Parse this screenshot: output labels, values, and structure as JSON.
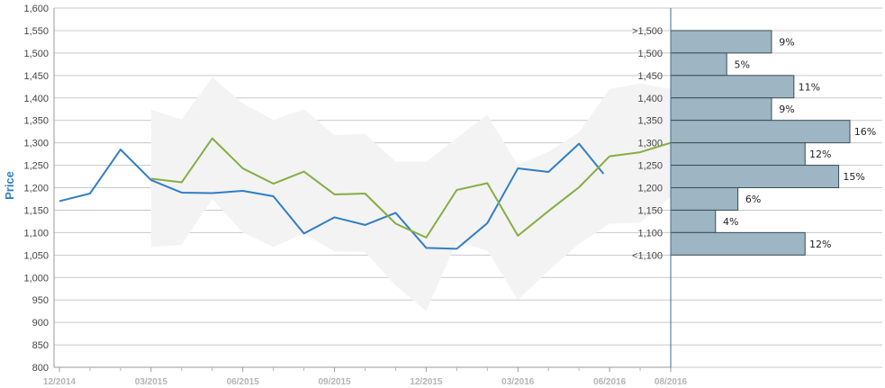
{
  "chart_data": {
    "type": "line",
    "title": "",
    "ylabel": "Price",
    "xlabel": "",
    "ylim": [
      800,
      1600
    ],
    "y_ticks": [
      800,
      850,
      900,
      950,
      1000,
      1050,
      1100,
      1150,
      1200,
      1250,
      1300,
      1350,
      1400,
      1450,
      1500,
      1550,
      1600
    ],
    "y_tick_labels": [
      "800",
      "850",
      "900",
      "950",
      "1,000",
      "1,050",
      "1,100",
      "1,150",
      "1,200",
      "1,250",
      "1,300",
      "1,350",
      "1,400",
      "1,450",
      "1,500",
      "1,550",
      "1,600"
    ],
    "x_ticks": [
      {
        "pos": 0,
        "label": "12/2014"
      },
      {
        "pos": 3,
        "label": "03/2015"
      },
      {
        "pos": 6,
        "label": "06/2015"
      },
      {
        "pos": 9,
        "label": "09/2015"
      },
      {
        "pos": 12,
        "label": "12/2015"
      },
      {
        "pos": 15,
        "label": "03/2016"
      },
      {
        "pos": 18,
        "label": "06/2016"
      },
      {
        "pos": 20,
        "label": "08/2016"
      }
    ],
    "xlim": [
      0,
      20
    ],
    "grid": true,
    "series": [
      {
        "color": "#2f7ec7",
        "x": [
          0,
          1,
          2,
          3,
          4,
          5,
          6,
          7,
          8,
          9,
          10,
          11,
          12,
          13,
          14,
          15,
          16,
          17,
          17.8
        ],
        "values": [
          1170,
          1187,
          1285,
          1217,
          1189,
          1188,
          1193,
          1181,
          1098,
          1134,
          1117,
          1144,
          1066,
          1064,
          1121,
          1243,
          1235,
          1298,
          1231
        ]
      },
      {
        "color": "#86ad45",
        "x": [
          3,
          4,
          5,
          6,
          7,
          8,
          9,
          10,
          11,
          12,
          13,
          14,
          15,
          16,
          17,
          18,
          19,
          20
        ],
        "values": [
          1220,
          1212,
          1310,
          1243,
          1209,
          1236,
          1185,
          1187,
          1120,
          1089,
          1195,
          1210,
          1093,
          1148,
          1201,
          1270,
          1279,
          1300
        ]
      }
    ],
    "band": {
      "color": "#f3f3f3",
      "x": [
        3,
        4,
        5,
        6,
        7,
        8,
        9,
        10,
        11,
        12,
        13,
        14,
        15,
        16,
        17,
        18,
        19,
        20
      ],
      "upper": [
        1374,
        1352,
        1446,
        1388,
        1351,
        1375,
        1317,
        1320,
        1258,
        1258,
        1311,
        1362,
        1251,
        1280,
        1323,
        1420,
        1432,
        1420
      ],
      "lower": [
        1068,
        1073,
        1175,
        1100,
        1068,
        1098,
        1058,
        1057,
        982,
        925,
        1080,
        1060,
        950,
        1015,
        1075,
        1120,
        1122,
        1180
      ]
    },
    "histogram": {
      "bar_color": "#9eb5c3",
      "bins": [
        {
          "label": ">1,500",
          "pct": 9,
          "text": "9%"
        },
        {
          "label": "1,500",
          "pct": 5,
          "text": "5%"
        },
        {
          "label": "1,450",
          "pct": 11,
          "text": "11%"
        },
        {
          "label": "1,400",
          "pct": 9,
          "text": "9%"
        },
        {
          "label": "1,350",
          "pct": 16,
          "text": "16%"
        },
        {
          "label": "1,300",
          "pct": 12,
          "text": "12%"
        },
        {
          "label": "1,250",
          "pct": 15,
          "text": "15%"
        },
        {
          "label": "1,200",
          "pct": 6,
          "text": "6%"
        },
        {
          "label": "1,150",
          "pct": 4,
          "text": "4%"
        },
        {
          "label": "1,100",
          "pct": 12,
          "text": "12%"
        },
        {
          "label": "<1,100",
          "pct": null,
          "text": ""
        }
      ]
    }
  }
}
